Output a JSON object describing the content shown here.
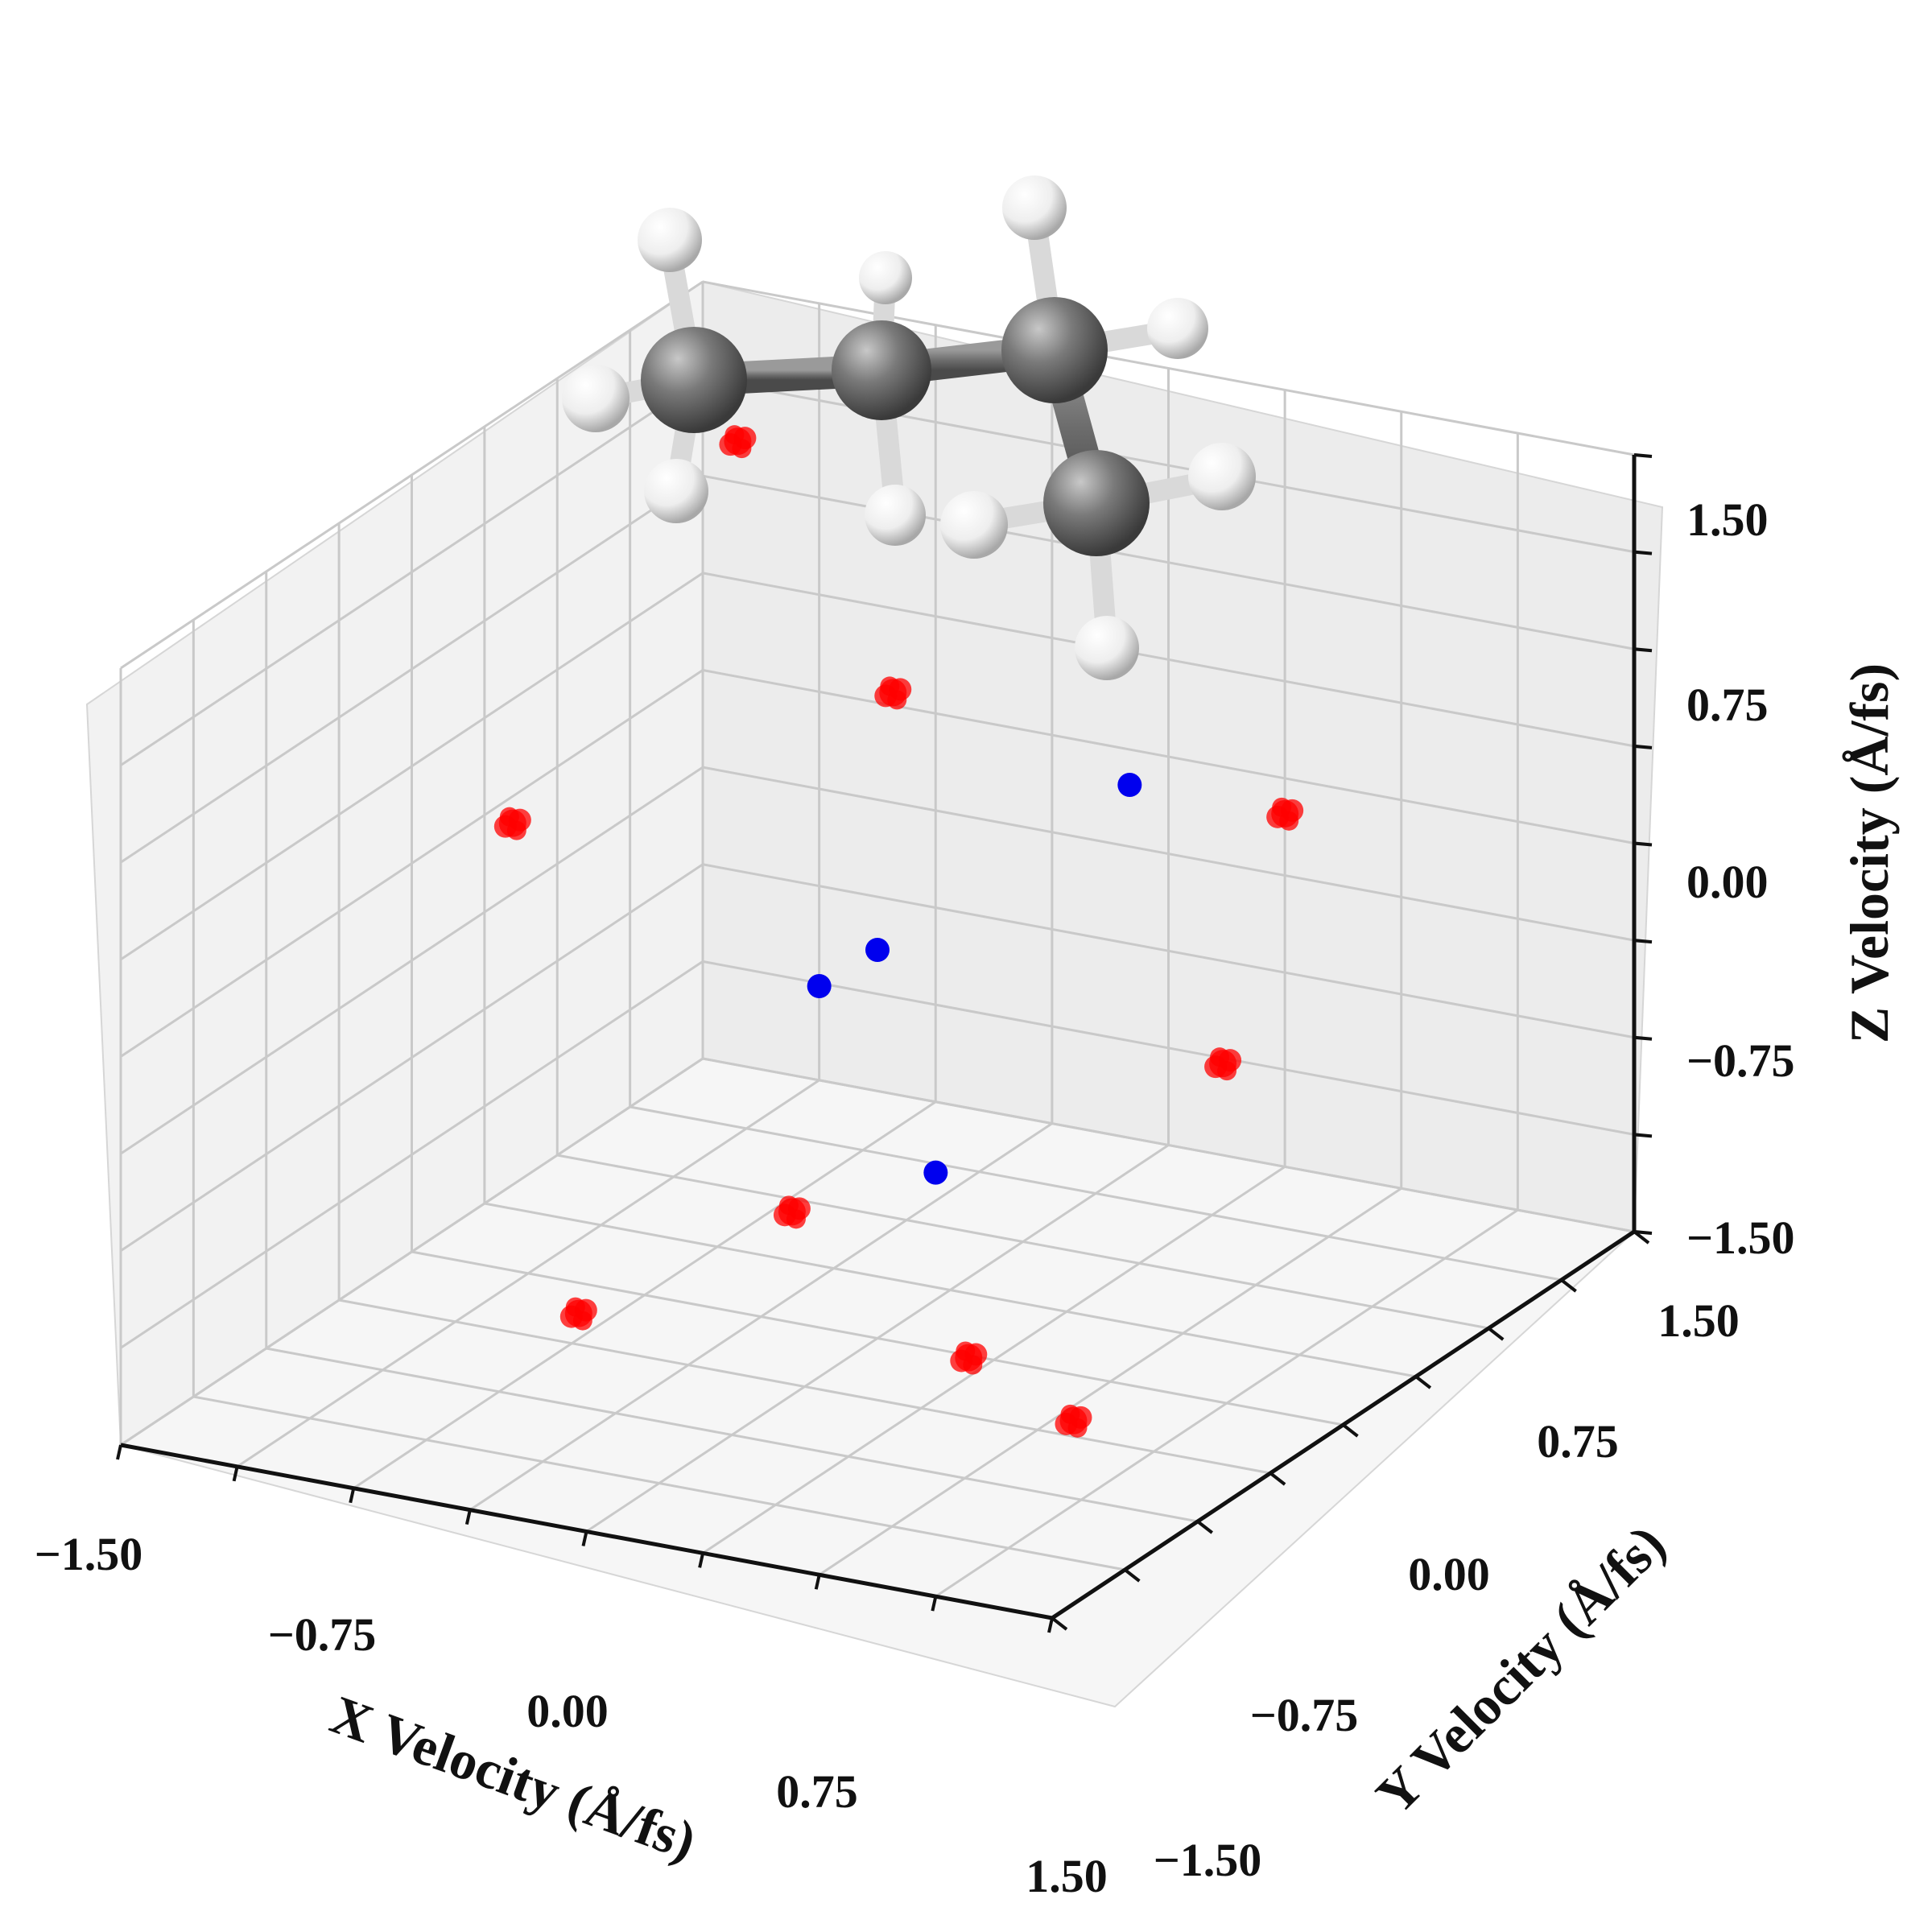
{
  "chart_data": {
    "type": "scatter",
    "dimensions": 3,
    "title": "",
    "xlabel": "X Velocity (Å/fs)",
    "ylabel": "Y Velocity (Å/fs)",
    "zlabel": "Z Velocity (Å/fs)",
    "xlim": [
      -1.5,
      1.5
    ],
    "ylim": [
      -1.5,
      1.5
    ],
    "zlim": [
      -1.5,
      1.5
    ],
    "xticks": [
      "−1.50",
      "−0.75",
      "0.00",
      "0.75",
      "1.50"
    ],
    "yticks": [
      "−1.50",
      "−0.75",
      "0.00",
      "0.75",
      "1.50"
    ],
    "zticks": [
      "−1.50",
      "−0.75",
      "0.00",
      "0.75",
      "1.50"
    ],
    "grid": true,
    "series": [
      {
        "color": "#ff0000",
        "points": [
          {
            "x": -1.2,
            "y": 1.2,
            "z": 1.1
          },
          {
            "x": 0.0,
            "y": 1.25,
            "z": 1.2
          },
          {
            "x": -0.2,
            "y": 0.4,
            "z": 0.75
          },
          {
            "x": -1.3,
            "y": 0.2,
            "z": 0.1
          },
          {
            "x": 1.0,
            "y": 0.5,
            "z": 0.5
          },
          {
            "x": 1.3,
            "y": -0.3,
            "z": 0.0
          },
          {
            "x": -0.4,
            "y": 0.2,
            "z": -1.2
          },
          {
            "x": -0.65,
            "y": -0.5,
            "z": -1.3
          },
          {
            "x": 0.45,
            "y": -0.25,
            "z": -1.35
          },
          {
            "x": 1.1,
            "y": -0.75,
            "z": -1.2
          }
        ]
      },
      {
        "color": "#0000ee",
        "points": [
          {
            "x": 0.0,
            "y": 0.0,
            "z": 0.0
          },
          {
            "x": -0.5,
            "y": 0.5,
            "z": -0.5
          },
          {
            "x": 0.5,
            "y": 0.5,
            "z": 0.5
          },
          {
            "x": 0.5,
            "y": -0.5,
            "z": -0.5
          }
        ]
      }
    ]
  },
  "inset": {
    "molecule_icon": "propane-ball-and-stick-icon",
    "carbon_color": "#7a7a7a",
    "hydrogen_color": "#f4f4f4"
  }
}
